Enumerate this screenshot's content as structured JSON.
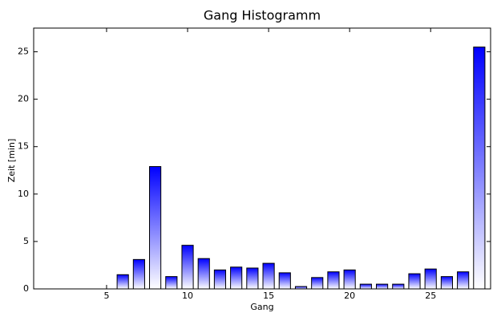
{
  "chart_data": {
    "type": "bar",
    "title": "Gang Histogramm",
    "x_label": "Gang",
    "y_label": "Zeit [min]",
    "x": [
      6,
      7,
      8,
      9,
      10,
      11,
      12,
      13,
      14,
      15,
      16,
      17,
      18,
      19,
      20,
      21,
      22,
      23,
      24,
      25,
      26,
      27,
      28
    ],
    "values": [
      1.5,
      3.1,
      12.9,
      1.3,
      4.6,
      3.2,
      2.0,
      2.3,
      2.2,
      2.7,
      1.7,
      0.25,
      1.2,
      1.8,
      2.0,
      0.5,
      0.5,
      0.5,
      1.6,
      2.1,
      1.3,
      1.8,
      25.5
    ],
    "color": "#0000ff",
    "xlim": [
      0.5,
      28.7
    ],
    "xticks": [
      5,
      10,
      15,
      20,
      25
    ],
    "ylim": [
      0,
      27.5
    ],
    "yticks": [
      0,
      5,
      10,
      15,
      20,
      25
    ]
  }
}
